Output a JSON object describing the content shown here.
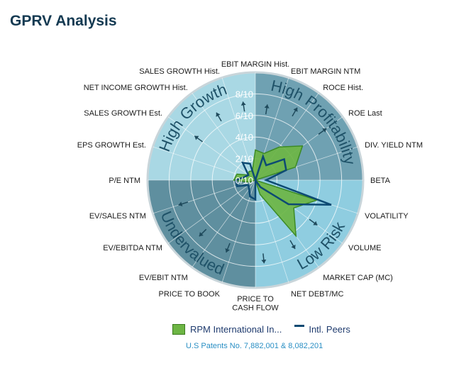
{
  "page": {
    "title": "GPRV Analysis"
  },
  "quadrants": [
    {
      "label": "High Growth",
      "color": "#a9d8e4"
    },
    {
      "label": "High Profitability",
      "color": "#6fa1b2"
    },
    {
      "label": "Low Risk",
      "color": "#8fcde0"
    },
    {
      "label": "Undervalued",
      "color": "#5f8f9f"
    }
  ],
  "legend": {
    "company": "RPM International In...",
    "peers": "Intl. Peers",
    "company_color": "#6db544",
    "peers_color": "#0d4a73"
  },
  "patent_note": "U.S Patents No. 7,882,001 & 8,082,201",
  "chart_data": {
    "type": "radar",
    "title": "GPRV Analysis",
    "rmax": 10,
    "ticks": [
      "0/10",
      "2/10",
      "4/10",
      "6/10",
      "8/10"
    ],
    "categories": [
      "EBIT MARGIN Hist.",
      "EBIT MARGIN NTM",
      "ROCE Hist.",
      "ROE  Last",
      "DIV. YIELD NTM",
      "BETA",
      "VOLATILITY",
      "VOLUME",
      "MARKET CAP (MC)",
      "NET DEBT/MC",
      "PRICE TO CASH FLOW",
      "PRICE TO BOOK",
      "EV/EBIT NTM",
      "EV/EBITDA NTM",
      "EV/SALES NTM",
      "P/E NTM",
      "EPS GROWTH Est.",
      "SALES GROWTH Est.",
      "NET INCOME GROWTH Hist.",
      "SALES GROWTH Hist."
    ],
    "series": [
      {
        "name": "RPM International In...",
        "values": [
          2.8,
          2.6,
          3.8,
          5.4,
          3.9,
          0.0,
          6.0,
          4.4,
          6.4,
          1.4,
          0.0,
          0.0,
          0.0,
          0.0,
          0.6,
          2.0,
          1.8,
          0.8,
          1.0,
          0.9
        ]
      },
      {
        "name": "Intl. Peers",
        "values": [
          0.0,
          2.3,
          1.7,
          3.3,
          3.0,
          1.0,
          7.4,
          3.8,
          0.8,
          0.0,
          1.8,
          1.6,
          1.0,
          0.8,
          1.8,
          1.8,
          1.0,
          0.8,
          2.0,
          1.6
        ]
      }
    ]
  }
}
